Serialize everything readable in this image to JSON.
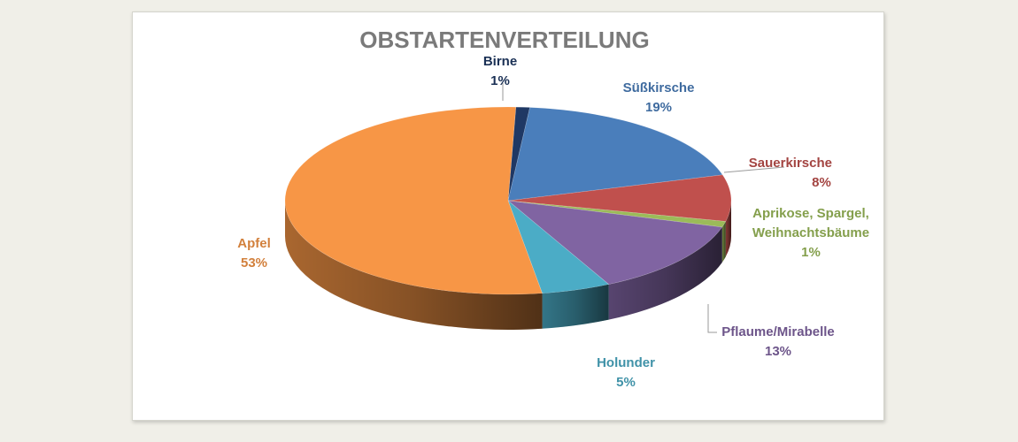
{
  "chart_data": {
    "type": "pie",
    "title": "OBSTARTENVERTEILUNG",
    "slices": [
      {
        "name": "Birne",
        "value": 1,
        "label": "1%",
        "color": "#1f3864"
      },
      {
        "name": "Süßkirsche",
        "value": 19,
        "label": "19%",
        "color": "#4a7ebb"
      },
      {
        "name": "Sauerkirsche",
        "value": 8,
        "label": "8%",
        "color": "#c0504d"
      },
      {
        "name": "Aprikose, Spargel, Weihnachtsbäume",
        "name_lines": [
          "Aprikose, Spargel,",
          "Weihnachtsbäume"
        ],
        "value": 1,
        "label": "1%",
        "color": "#9bbb59"
      },
      {
        "name": "Pflaume/Mirabelle",
        "value": 13,
        "label": "13%",
        "color": "#8064a2"
      },
      {
        "name": "Holunder",
        "value": 5,
        "label": "5%",
        "color": "#4bacc6"
      },
      {
        "name": "Apfel",
        "value": 53,
        "label": "53%",
        "color": "#f79646"
      }
    ]
  }
}
